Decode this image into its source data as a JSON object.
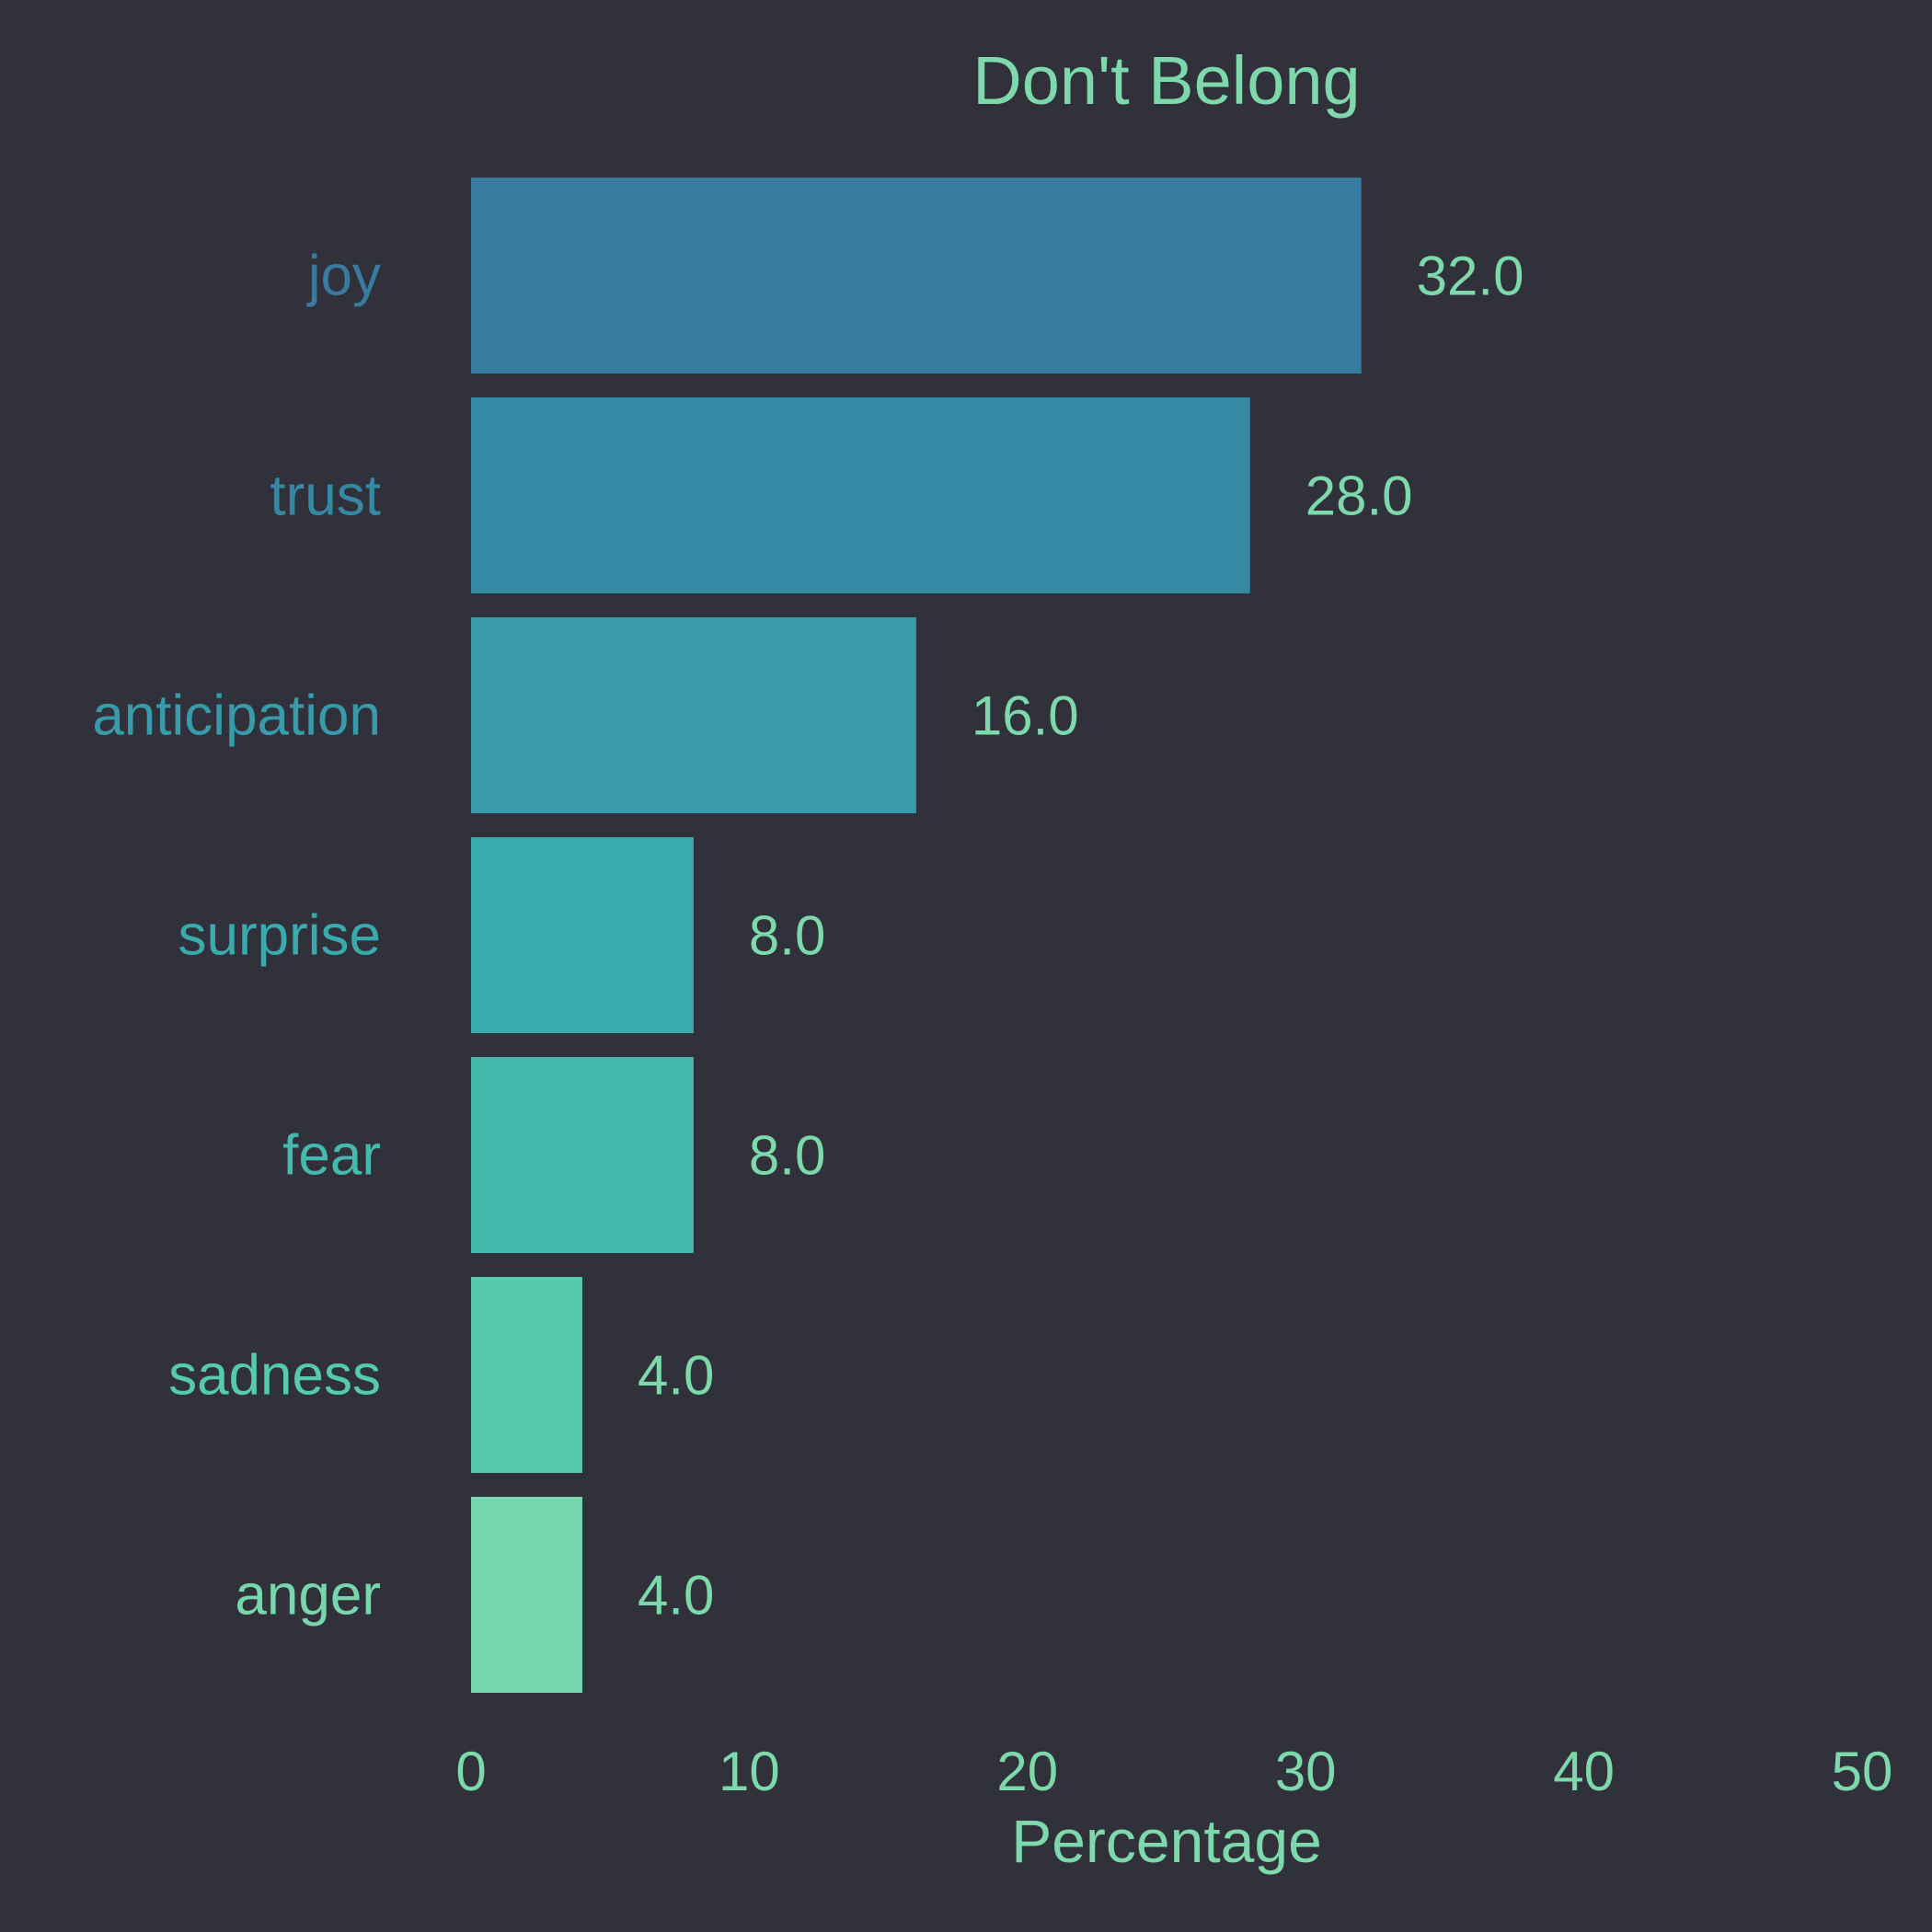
{
  "colors": {
    "background": "#30313b",
    "text": "#7dd8ac",
    "bars": [
      "#377ba1",
      "#3689a4",
      "#379ba9",
      "#39abac",
      "#45b9ad",
      "#56cbab",
      "#78d6ac"
    ],
    "category_labels": [
      "#377ba1",
      "#3689a4",
      "#379ba9",
      "#39abac",
      "#45b9ad",
      "#56cbab",
      "#78d6ac"
    ]
  },
  "chart_data": {
    "type": "bar",
    "orientation": "horizontal",
    "title": "Don't Belong",
    "xlabel": "Percentage",
    "ylabel": "",
    "categories": [
      "joy",
      "trust",
      "anticipation",
      "surprise",
      "fear",
      "sadness",
      "anger"
    ],
    "values": [
      32.0,
      28.0,
      16.0,
      8.0,
      8.0,
      4.0,
      4.0
    ],
    "value_labels": [
      "32.0",
      "28.0",
      "16.0",
      "8.0",
      "8.0",
      "4.0",
      "4.0"
    ],
    "xlim": [
      0,
      50
    ],
    "xticks": [
      0,
      10,
      20,
      30,
      40,
      50
    ],
    "xtick_labels": [
      "0",
      "10",
      "20",
      "30",
      "40",
      "50"
    ],
    "grid": false,
    "legend": "none"
  }
}
